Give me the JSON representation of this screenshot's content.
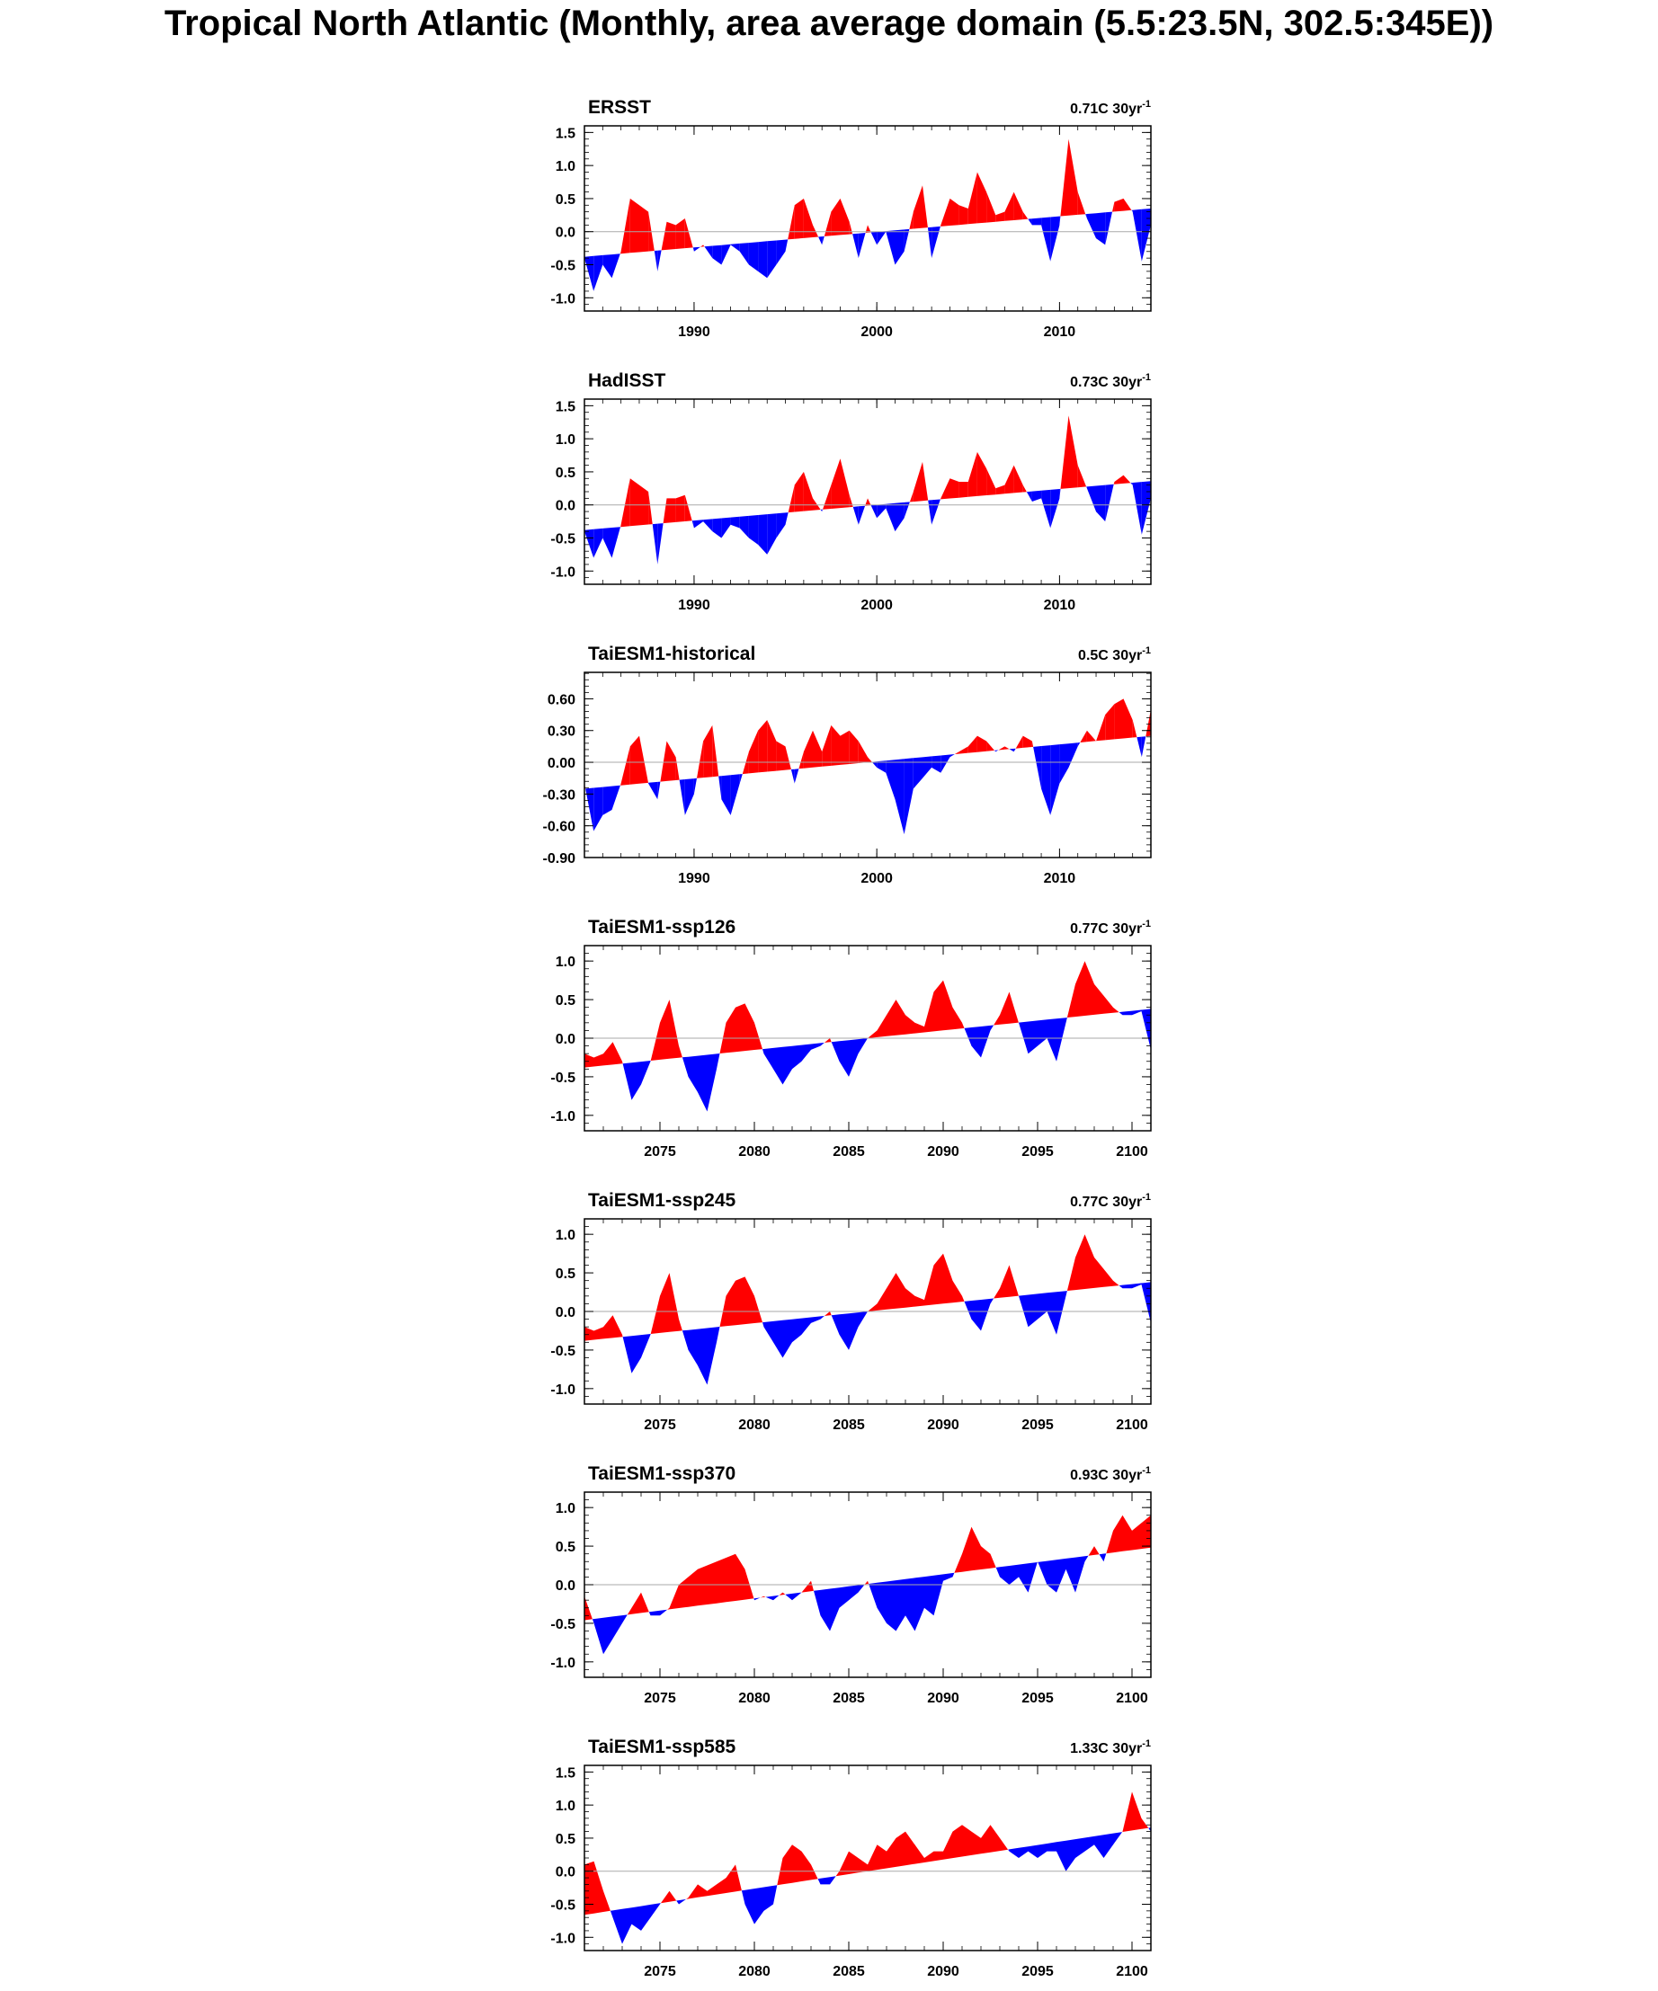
{
  "title": "Tropical North Atlantic (Monthly, area average domain (5.5:23.5N, 302.5:345E))",
  "colors": {
    "positive": "#ff0000",
    "negative": "#0000ff",
    "zero_line": "#aaaaaa",
    "frame": "#000000"
  },
  "chart_data": [
    {
      "type": "area",
      "title": "ERSST",
      "trend_label": "0.71C 30yr",
      "trend_sup": "-1",
      "xlim": [
        1984,
        2015
      ],
      "ylim": [
        -1.2,
        1.6
      ],
      "xticks": [
        1990,
        2000,
        2010
      ],
      "yticks": [
        -1.0,
        -0.5,
        0.0,
        0.5,
        1.0,
        1.5
      ],
      "ytick_labels": [
        "-1.0",
        "-0.5",
        "0.0",
        "0.5",
        "1.0",
        "1.5"
      ],
      "trend_line": [
        [
          1984,
          -0.38
        ],
        [
          2015,
          0.35
        ]
      ],
      "x": [
        1984.0,
        1984.5,
        1985.0,
        1985.5,
        1986.0,
        1986.5,
        1987.0,
        1987.5,
        1988.0,
        1988.5,
        1989.0,
        1989.5,
        1990.0,
        1990.5,
        1991.0,
        1991.5,
        1992.0,
        1992.5,
        1993.0,
        1993.5,
        1994.0,
        1994.5,
        1995.0,
        1995.5,
        1996.0,
        1996.5,
        1997.0,
        1997.5,
        1998.0,
        1998.5,
        1999.0,
        1999.5,
        2000.0,
        2000.5,
        2001.0,
        2001.5,
        2002.0,
        2002.5,
        2003.0,
        2003.5,
        2004.0,
        2004.5,
        2005.0,
        2005.5,
        2006.0,
        2006.5,
        2007.0,
        2007.5,
        2008.0,
        2008.5,
        2009.0,
        2009.5,
        2010.0,
        2010.5,
        2011.0,
        2011.5,
        2012.0,
        2012.5,
        2013.0,
        2013.5,
        2014.0,
        2014.5,
        2015.0
      ],
      "values": [
        -0.4,
        -0.9,
        -0.5,
        -0.7,
        -0.3,
        0.5,
        0.4,
        0.3,
        -0.6,
        0.15,
        0.1,
        0.2,
        -0.3,
        -0.2,
        -0.4,
        -0.5,
        -0.2,
        -0.3,
        -0.5,
        -0.6,
        -0.7,
        -0.5,
        -0.3,
        0.4,
        0.5,
        0.1,
        -0.2,
        0.3,
        0.5,
        0.15,
        -0.4,
        0.1,
        -0.2,
        0.0,
        -0.5,
        -0.3,
        0.3,
        0.7,
        -0.4,
        0.1,
        0.5,
        0.4,
        0.35,
        0.9,
        0.6,
        0.25,
        0.3,
        0.6,
        0.3,
        0.1,
        0.1,
        -0.45,
        0.1,
        1.4,
        0.6,
        0.2,
        -0.1,
        -0.2,
        0.45,
        0.5,
        0.3,
        -0.45,
        0.1
      ]
    },
    {
      "type": "area",
      "title": "HadISST",
      "trend_label": "0.73C 30yr",
      "trend_sup": "-1",
      "xlim": [
        1984,
        2015
      ],
      "ylim": [
        -1.2,
        1.6
      ],
      "xticks": [
        1990,
        2000,
        2010
      ],
      "yticks": [
        -1.0,
        -0.5,
        0.0,
        0.5,
        1.0,
        1.5
      ],
      "ytick_labels": [
        "-1.0",
        "-0.5",
        "0.0",
        "0.5",
        "1.0",
        "1.5"
      ],
      "trend_line": [
        [
          1984,
          -0.38
        ],
        [
          2015,
          0.36
        ]
      ],
      "x": [
        1984.0,
        1984.5,
        1985.0,
        1985.5,
        1986.0,
        1986.5,
        1987.0,
        1987.5,
        1988.0,
        1988.5,
        1989.0,
        1989.5,
        1990.0,
        1990.5,
        1991.0,
        1991.5,
        1992.0,
        1992.5,
        1993.0,
        1993.5,
        1994.0,
        1994.5,
        1995.0,
        1995.5,
        1996.0,
        1996.5,
        1997.0,
        1997.5,
        1998.0,
        1998.5,
        1999.0,
        1999.5,
        2000.0,
        2000.5,
        2001.0,
        2001.5,
        2002.0,
        2002.5,
        2003.0,
        2003.5,
        2004.0,
        2004.5,
        2005.0,
        2005.5,
        2006.0,
        2006.5,
        2007.0,
        2007.5,
        2008.0,
        2008.5,
        2009.0,
        2009.5,
        2010.0,
        2010.5,
        2011.0,
        2011.5,
        2012.0,
        2012.5,
        2013.0,
        2013.5,
        2014.0,
        2014.5,
        2015.0
      ],
      "values": [
        -0.4,
        -0.8,
        -0.5,
        -0.8,
        -0.3,
        0.4,
        0.3,
        0.2,
        -0.9,
        0.1,
        0.1,
        0.15,
        -0.35,
        -0.25,
        -0.4,
        -0.5,
        -0.3,
        -0.35,
        -0.5,
        -0.6,
        -0.75,
        -0.5,
        -0.3,
        0.3,
        0.5,
        0.1,
        -0.1,
        0.3,
        0.7,
        0.15,
        -0.3,
        0.1,
        -0.2,
        -0.05,
        -0.4,
        -0.2,
        0.2,
        0.65,
        -0.3,
        0.1,
        0.4,
        0.35,
        0.35,
        0.8,
        0.55,
        0.25,
        0.3,
        0.6,
        0.3,
        0.05,
        0.1,
        -0.35,
        0.1,
        1.35,
        0.6,
        0.25,
        -0.1,
        -0.25,
        0.35,
        0.45,
        0.3,
        -0.45,
        0.1
      ]
    },
    {
      "type": "area",
      "title": "TaiESM1-historical",
      "trend_label": "0.5C 30yr",
      "trend_sup": "-1",
      "xlim": [
        1984,
        2015
      ],
      "ylim": [
        -0.9,
        0.85
      ],
      "xticks": [
        1990,
        2000,
        2010
      ],
      "yticks": [
        -0.9,
        -0.6,
        -0.3,
        0.0,
        0.3,
        0.6
      ],
      "ytick_labels": [
        "-0.90",
        "-0.60",
        "-0.30",
        "0.00",
        "0.30",
        "0.60"
      ],
      "trend_line": [
        [
          1984,
          -0.25
        ],
        [
          2015,
          0.25
        ]
      ],
      "x": [
        1984.0,
        1984.5,
        1985.0,
        1985.5,
        1986.0,
        1986.5,
        1987.0,
        1987.5,
        1988.0,
        1988.5,
        1989.0,
        1989.5,
        1990.0,
        1990.5,
        1991.0,
        1991.5,
        1992.0,
        1992.5,
        1993.0,
        1993.5,
        1994.0,
        1994.5,
        1995.0,
        1995.5,
        1996.0,
        1996.5,
        1997.0,
        1997.5,
        1998.0,
        1998.5,
        1999.0,
        1999.5,
        2000.0,
        2000.5,
        2001.0,
        2001.5,
        2002.0,
        2002.5,
        2003.0,
        2003.5,
        2004.0,
        2004.5,
        2005.0,
        2005.5,
        2006.0,
        2006.5,
        2007.0,
        2007.5,
        2008.0,
        2008.5,
        2009.0,
        2009.5,
        2010.0,
        2010.5,
        2011.0,
        2011.5,
        2012.0,
        2012.5,
        2013.0,
        2013.5,
        2014.0,
        2014.5,
        2015.0
      ],
      "values": [
        -0.2,
        -0.65,
        -0.5,
        -0.45,
        -0.2,
        0.15,
        0.25,
        -0.2,
        -0.35,
        0.2,
        0.05,
        -0.5,
        -0.3,
        0.2,
        0.35,
        -0.35,
        -0.5,
        -0.2,
        0.1,
        0.3,
        0.4,
        0.2,
        0.15,
        -0.2,
        0.1,
        0.3,
        0.1,
        0.35,
        0.25,
        0.3,
        0.2,
        0.05,
        -0.05,
        -0.1,
        -0.35,
        -0.68,
        -0.25,
        -0.15,
        -0.05,
        -0.1,
        0.05,
        0.1,
        0.15,
        0.25,
        0.2,
        0.1,
        0.15,
        0.1,
        0.25,
        0.2,
        -0.25,
        -0.5,
        -0.2,
        -0.05,
        0.15,
        0.3,
        0.2,
        0.45,
        0.55,
        0.6,
        0.4,
        0.05,
        0.5
      ]
    },
    {
      "type": "area",
      "title": "TaiESM1-ssp126",
      "trend_label": "0.77C 30yr",
      "trend_sup": "-1",
      "xlim": [
        2071,
        2101
      ],
      "ylim": [
        -1.2,
        1.2
      ],
      "xticks": [
        2075,
        2080,
        2085,
        2090,
        2095,
        2100
      ],
      "yticks": [
        -1.0,
        -0.5,
        0.0,
        0.5,
        1.0
      ],
      "ytick_labels": [
        "-1.0",
        "-0.5",
        "0.0",
        "0.5",
        "1.0"
      ],
      "trend_line": [
        [
          2071,
          -0.38
        ],
        [
          2101,
          0.38
        ]
      ],
      "x": [
        2071.0,
        2071.5,
        2072.0,
        2072.5,
        2073.0,
        2073.5,
        2074.0,
        2074.5,
        2075.0,
        2075.5,
        2076.0,
        2076.5,
        2077.0,
        2077.5,
        2078.0,
        2078.5,
        2079.0,
        2079.5,
        2080.0,
        2080.5,
        2081.0,
        2081.5,
        2082.0,
        2082.5,
        2083.0,
        2083.5,
        2084.0,
        2084.5,
        2085.0,
        2085.5,
        2086.0,
        2086.5,
        2087.0,
        2087.5,
        2088.0,
        2088.5,
        2089.0,
        2089.5,
        2090.0,
        2090.5,
        2091.0,
        2091.5,
        2092.0,
        2092.5,
        2093.0,
        2093.5,
        2094.0,
        2094.5,
        2095.0,
        2095.5,
        2096.0,
        2096.5,
        2097.0,
        2097.5,
        2098.0,
        2098.5,
        2099.0,
        2099.5,
        2100.0,
        2100.5,
        2101.0
      ],
      "values": [
        -0.2,
        -0.25,
        -0.2,
        -0.05,
        -0.3,
        -0.8,
        -0.6,
        -0.3,
        0.2,
        0.5,
        -0.1,
        -0.5,
        -0.7,
        -0.95,
        -0.4,
        0.2,
        0.4,
        0.45,
        0.2,
        -0.2,
        -0.4,
        -0.6,
        -0.4,
        -0.3,
        -0.15,
        -0.1,
        0.0,
        -0.3,
        -0.5,
        -0.2,
        0.0,
        0.1,
        0.3,
        0.5,
        0.3,
        0.2,
        0.15,
        0.6,
        0.75,
        0.4,
        0.2,
        -0.1,
        -0.25,
        0.1,
        0.3,
        0.6,
        0.2,
        -0.2,
        -0.1,
        0.0,
        -0.3,
        0.2,
        0.7,
        1.0,
        0.7,
        0.55,
        0.4,
        0.3,
        0.3,
        0.35,
        -0.15
      ]
    },
    {
      "type": "area",
      "title": "TaiESM1-ssp245",
      "trend_label": "0.77C 30yr",
      "trend_sup": "-1",
      "xlim": [
        2071,
        2101
      ],
      "ylim": [
        -1.2,
        1.2
      ],
      "xticks": [
        2075,
        2080,
        2085,
        2090,
        2095,
        2100
      ],
      "yticks": [
        -1.0,
        -0.5,
        0.0,
        0.5,
        1.0
      ],
      "ytick_labels": [
        "-1.0",
        "-0.5",
        "0.0",
        "0.5",
        "1.0"
      ],
      "trend_line": [
        [
          2071,
          -0.38
        ],
        [
          2101,
          0.38
        ]
      ],
      "x": [
        2071.0,
        2071.5,
        2072.0,
        2072.5,
        2073.0,
        2073.5,
        2074.0,
        2074.5,
        2075.0,
        2075.5,
        2076.0,
        2076.5,
        2077.0,
        2077.5,
        2078.0,
        2078.5,
        2079.0,
        2079.5,
        2080.0,
        2080.5,
        2081.0,
        2081.5,
        2082.0,
        2082.5,
        2083.0,
        2083.5,
        2084.0,
        2084.5,
        2085.0,
        2085.5,
        2086.0,
        2086.5,
        2087.0,
        2087.5,
        2088.0,
        2088.5,
        2089.0,
        2089.5,
        2090.0,
        2090.5,
        2091.0,
        2091.5,
        2092.0,
        2092.5,
        2093.0,
        2093.5,
        2094.0,
        2094.5,
        2095.0,
        2095.5,
        2096.0,
        2096.5,
        2097.0,
        2097.5,
        2098.0,
        2098.5,
        2099.0,
        2099.5,
        2100.0,
        2100.5,
        2101.0
      ],
      "values": [
        -0.2,
        -0.25,
        -0.2,
        -0.05,
        -0.3,
        -0.8,
        -0.6,
        -0.3,
        0.2,
        0.5,
        -0.1,
        -0.5,
        -0.7,
        -0.95,
        -0.4,
        0.2,
        0.4,
        0.45,
        0.2,
        -0.2,
        -0.4,
        -0.6,
        -0.4,
        -0.3,
        -0.15,
        -0.1,
        0.0,
        -0.3,
        -0.5,
        -0.2,
        0.0,
        0.1,
        0.3,
        0.5,
        0.3,
        0.2,
        0.15,
        0.6,
        0.75,
        0.4,
        0.2,
        -0.1,
        -0.25,
        0.1,
        0.3,
        0.6,
        0.2,
        -0.2,
        -0.1,
        0.0,
        -0.3,
        0.2,
        0.7,
        1.0,
        0.7,
        0.55,
        0.4,
        0.3,
        0.3,
        0.35,
        -0.15
      ]
    },
    {
      "type": "area",
      "title": "TaiESM1-ssp370",
      "trend_label": "0.93C 30yr",
      "trend_sup": "-1",
      "xlim": [
        2071,
        2101
      ],
      "ylim": [
        -1.2,
        1.2
      ],
      "xticks": [
        2075,
        2080,
        2085,
        2090,
        2095,
        2100
      ],
      "yticks": [
        -1.0,
        -0.5,
        0.0,
        0.5,
        1.0
      ],
      "ytick_labels": [
        "-1.0",
        "-0.5",
        "0.0",
        "0.5",
        "1.0"
      ],
      "trend_line": [
        [
          2071,
          -0.46
        ],
        [
          2101,
          0.48
        ]
      ],
      "x": [
        2071.0,
        2071.5,
        2072.0,
        2072.5,
        2073.0,
        2073.5,
        2074.0,
        2074.5,
        2075.0,
        2075.5,
        2076.0,
        2076.5,
        2077.0,
        2077.5,
        2078.0,
        2078.5,
        2079.0,
        2079.5,
        2080.0,
        2080.5,
        2081.0,
        2081.5,
        2082.0,
        2082.5,
        2083.0,
        2083.5,
        2084.0,
        2084.5,
        2085.0,
        2085.5,
        2086.0,
        2086.5,
        2087.0,
        2087.5,
        2088.0,
        2088.5,
        2089.0,
        2089.5,
        2090.0,
        2090.5,
        2091.0,
        2091.5,
        2092.0,
        2092.5,
        2093.0,
        2093.5,
        2094.0,
        2094.5,
        2095.0,
        2095.5,
        2096.0,
        2096.5,
        2097.0,
        2097.5,
        2098.0,
        2098.5,
        2099.0,
        2099.5,
        2100.0,
        2100.5,
        2101.0
      ],
      "values": [
        -0.15,
        -0.5,
        -0.9,
        -0.7,
        -0.5,
        -0.3,
        -0.1,
        -0.4,
        -0.4,
        -0.3,
        0.0,
        0.1,
        0.2,
        0.25,
        0.3,
        0.35,
        0.4,
        0.2,
        -0.2,
        -0.15,
        -0.2,
        -0.1,
        -0.2,
        -0.1,
        0.05,
        -0.4,
        -0.6,
        -0.3,
        -0.2,
        -0.1,
        0.05,
        -0.3,
        -0.5,
        -0.6,
        -0.4,
        -0.6,
        -0.3,
        -0.4,
        0.05,
        0.1,
        0.4,
        0.75,
        0.5,
        0.4,
        0.1,
        0.0,
        0.1,
        -0.1,
        0.3,
        0.0,
        -0.1,
        0.2,
        -0.1,
        0.3,
        0.5,
        0.3,
        0.7,
        0.9,
        0.7,
        0.8,
        0.9
      ]
    },
    {
      "type": "area",
      "title": "TaiESM1-ssp585",
      "trend_label": "1.33C 30yr",
      "trend_sup": "-1",
      "xlim": [
        2071,
        2101
      ],
      "ylim": [
        -1.2,
        1.6
      ],
      "xticks": [
        2075,
        2080,
        2085,
        2090,
        2095,
        2100
      ],
      "yticks": [
        -1.0,
        -0.5,
        0.0,
        0.5,
        1.0,
        1.5
      ],
      "ytick_labels": [
        "-1.0",
        "-0.5",
        "0.0",
        "0.5",
        "1.0",
        "1.5"
      ],
      "trend_line": [
        [
          2071,
          -0.66
        ],
        [
          2101,
          0.66
        ]
      ],
      "x": [
        2071.0,
        2071.5,
        2072.0,
        2072.5,
        2073.0,
        2073.5,
        2074.0,
        2074.5,
        2075.0,
        2075.5,
        2076.0,
        2076.5,
        2077.0,
        2077.5,
        2078.0,
        2078.5,
        2079.0,
        2079.5,
        2080.0,
        2080.5,
        2081.0,
        2081.5,
        2082.0,
        2082.5,
        2083.0,
        2083.5,
        2084.0,
        2084.5,
        2085.0,
        2085.5,
        2086.0,
        2086.5,
        2087.0,
        2087.5,
        2088.0,
        2088.5,
        2089.0,
        2089.5,
        2090.0,
        2090.5,
        2091.0,
        2091.5,
        2092.0,
        2092.5,
        2093.0,
        2093.5,
        2094.0,
        2094.5,
        2095.0,
        2095.5,
        2096.0,
        2096.5,
        2097.0,
        2097.5,
        2098.0,
        2098.5,
        2099.0,
        2099.5,
        2100.0,
        2100.5,
        2101.0
      ],
      "values": [
        0.1,
        0.15,
        -0.3,
        -0.7,
        -1.1,
        -0.8,
        -0.9,
        -0.7,
        -0.5,
        -0.3,
        -0.5,
        -0.4,
        -0.2,
        -0.3,
        -0.2,
        -0.1,
        0.1,
        -0.5,
        -0.8,
        -0.6,
        -0.5,
        0.2,
        0.4,
        0.3,
        0.1,
        -0.2,
        -0.2,
        0.0,
        0.3,
        0.2,
        0.1,
        0.4,
        0.3,
        0.5,
        0.6,
        0.4,
        0.2,
        0.3,
        0.3,
        0.6,
        0.7,
        0.6,
        0.5,
        0.7,
        0.5,
        0.3,
        0.2,
        0.3,
        0.2,
        0.3,
        0.3,
        0.0,
        0.2,
        0.3,
        0.4,
        0.2,
        0.4,
        0.6,
        1.2,
        0.8,
        0.6
      ]
    }
  ]
}
